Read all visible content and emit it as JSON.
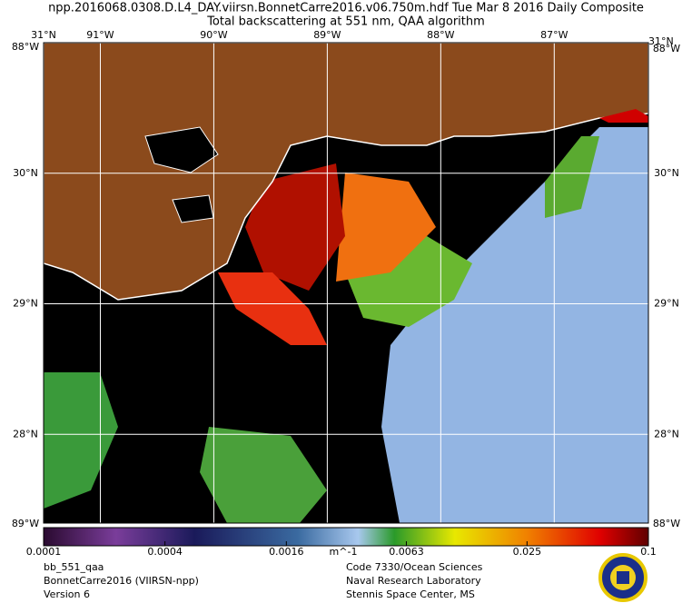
{
  "header": {
    "title": "npp.2016068.0308.D.L4_DAY.viirsn.BonnetCarre2016.v06.750m.hdf    Tue Mar  8 2016 Daily Composite",
    "subtitle": "Total backscattering at 551 nm, QAA algorithm"
  },
  "map": {
    "xlim": [
      -91.5,
      -86.17
    ],
    "ylim": [
      27.32,
      31
    ],
    "lon_ticks": [
      {
        "value": -91,
        "label": "91°W"
      },
      {
        "value": -90,
        "label": "90°W"
      },
      {
        "value": -89,
        "label": "89°W"
      },
      {
        "value": -88,
        "label": "88°W"
      },
      {
        "value": -87,
        "label": "87°W"
      }
    ],
    "lat_ticks": [
      {
        "value": 30,
        "label": "30°N"
      },
      {
        "value": 29,
        "label": "29°N"
      },
      {
        "value": 28,
        "label": "28°N"
      }
    ],
    "corner_labels": [
      "31°N",
      "88°W",
      "31°N",
      "88°W",
      "89°W",
      "88°W"
    ]
  },
  "colorbar": {
    "scale": "log",
    "lim": [
      0.0001,
      0.1
    ],
    "ticks": [
      0.0001,
      0.0004,
      0.0016,
      0.0063,
      0.025,
      0.1
    ],
    "unit": "m^-1"
  },
  "footer": {
    "left": [
      "bb_551_qaa",
      "BonnetCarre2016 (VIIRSN-npp)",
      "Version 6"
    ],
    "center": [
      "Code 7330/Ocean Sciences",
      "Naval Research Laboratory",
      "Stennis Space Center, MS"
    ]
  }
}
